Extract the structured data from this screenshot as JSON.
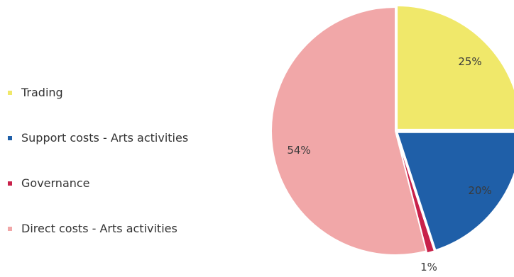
{
  "chart_data": {
    "type": "pie",
    "title": "",
    "slices": [
      {
        "label": "Trading",
        "value": 25,
        "display": "25%",
        "color": "#f0e86a"
      },
      {
        "label": "Support costs - Arts activities",
        "value": 20,
        "display": "20%",
        "color": "#1f5fa8"
      },
      {
        "label": "Governance",
        "value": 1,
        "display": "1%",
        "color": "#c8214a"
      },
      {
        "label": "Direct costs - Arts activities",
        "value": 54,
        "display": "54%",
        "color": "#f1a7a8"
      }
    ],
    "legend_position": "left"
  }
}
